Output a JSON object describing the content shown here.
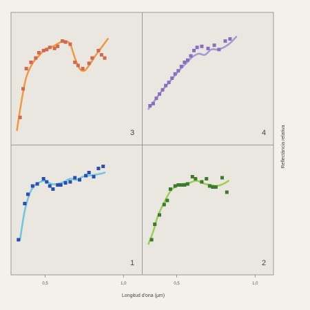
{
  "chart_data": {
    "type": "scatter",
    "title": "",
    "xlabel": "Longitud d'ona (μm)",
    "ylabel": "Reflectància relativa",
    "xlim": [
      0.3,
      1.1
    ],
    "grid": "2x2 panels",
    "panels": [
      {
        "label": "3",
        "marker_color": "#d2694f",
        "line_color": "#f09a45",
        "points": [
          [
            0.34,
            0.14
          ],
          [
            0.36,
            0.41
          ],
          [
            0.38,
            0.6
          ],
          [
            0.41,
            0.66
          ],
          [
            0.44,
            0.7
          ],
          [
            0.46,
            0.75
          ],
          [
            0.49,
            0.77
          ],
          [
            0.51,
            0.78
          ],
          [
            0.53,
            0.8
          ],
          [
            0.56,
            0.79
          ],
          [
            0.58,
            0.81
          ],
          [
            0.61,
            0.86
          ],
          [
            0.63,
            0.85
          ],
          [
            0.66,
            0.83
          ],
          [
            0.69,
            0.66
          ],
          [
            0.71,
            0.63
          ],
          [
            0.74,
            0.6
          ],
          [
            0.78,
            0.65
          ],
          [
            0.8,
            0.7
          ],
          [
            0.84,
            0.77
          ],
          [
            0.86,
            0.73
          ],
          [
            0.88,
            0.7
          ]
        ],
        "curve": [
          [
            0.32,
            0.02
          ],
          [
            0.35,
            0.3
          ],
          [
            0.38,
            0.52
          ],
          [
            0.42,
            0.65
          ],
          [
            0.46,
            0.72
          ],
          [
            0.5,
            0.78
          ],
          [
            0.55,
            0.81
          ],
          [
            0.6,
            0.85
          ],
          [
            0.63,
            0.86
          ],
          [
            0.66,
            0.83
          ],
          [
            0.69,
            0.7
          ],
          [
            0.72,
            0.6
          ],
          [
            0.75,
            0.58
          ],
          [
            0.78,
            0.63
          ],
          [
            0.82,
            0.72
          ],
          [
            0.86,
            0.8
          ],
          [
            0.9,
            0.88
          ]
        ]
      },
      {
        "label": "4",
        "marker_color": "#8a6fbe",
        "line_color": "#a89ad6",
        "points": [
          [
            0.33,
            0.25
          ],
          [
            0.35,
            0.27
          ],
          [
            0.37,
            0.32
          ],
          [
            0.39,
            0.36
          ],
          [
            0.41,
            0.4
          ],
          [
            0.43,
            0.44
          ],
          [
            0.45,
            0.47
          ],
          [
            0.47,
            0.51
          ],
          [
            0.49,
            0.55
          ],
          [
            0.51,
            0.58
          ],
          [
            0.53,
            0.62
          ],
          [
            0.55,
            0.66
          ],
          [
            0.57,
            0.68
          ],
          [
            0.59,
            0.72
          ],
          [
            0.61,
            0.77
          ],
          [
            0.63,
            0.8
          ],
          [
            0.66,
            0.81
          ],
          [
            0.7,
            0.79
          ],
          [
            0.74,
            0.82
          ],
          [
            0.77,
            0.78
          ],
          [
            0.81,
            0.86
          ],
          [
            0.84,
            0.88
          ]
        ],
        "curve": [
          [
            0.32,
            0.22
          ],
          [
            0.36,
            0.3
          ],
          [
            0.4,
            0.38
          ],
          [
            0.44,
            0.45
          ],
          [
            0.48,
            0.52
          ],
          [
            0.52,
            0.59
          ],
          [
            0.56,
            0.65
          ],
          [
            0.6,
            0.71
          ],
          [
            0.64,
            0.74
          ],
          [
            0.68,
            0.73
          ],
          [
            0.72,
            0.78
          ],
          [
            0.76,
            0.78
          ],
          [
            0.8,
            0.8
          ],
          [
            0.84,
            0.84
          ],
          [
            0.88,
            0.9
          ]
        ]
      },
      {
        "label": "1",
        "marker_color": "#2a4fb0",
        "line_color": "#6fc6e3",
        "points": [
          [
            0.33,
            0.22
          ],
          [
            0.37,
            0.57
          ],
          [
            0.39,
            0.66
          ],
          [
            0.42,
            0.74
          ],
          [
            0.45,
            0.76
          ],
          [
            0.49,
            0.81
          ],
          [
            0.51,
            0.78
          ],
          [
            0.53,
            0.74
          ],
          [
            0.55,
            0.71
          ],
          [
            0.58,
            0.75
          ],
          [
            0.6,
            0.75
          ],
          [
            0.63,
            0.77
          ],
          [
            0.66,
            0.78
          ],
          [
            0.69,
            0.82
          ],
          [
            0.72,
            0.8
          ],
          [
            0.76,
            0.84
          ],
          [
            0.78,
            0.87
          ],
          [
            0.81,
            0.83
          ],
          [
            0.84,
            0.91
          ],
          [
            0.87,
            0.93
          ]
        ],
        "curve": [
          [
            0.34,
            0.22
          ],
          [
            0.37,
            0.5
          ],
          [
            0.4,
            0.66
          ],
          [
            0.43,
            0.74
          ],
          [
            0.47,
            0.78
          ],
          [
            0.5,
            0.79
          ],
          [
            0.54,
            0.76
          ],
          [
            0.58,
            0.76
          ],
          [
            0.62,
            0.78
          ],
          [
            0.66,
            0.81
          ],
          [
            0.7,
            0.8
          ],
          [
            0.74,
            0.83
          ],
          [
            0.78,
            0.84
          ],
          [
            0.82,
            0.85
          ],
          [
            0.86,
            0.86
          ],
          [
            0.88,
            0.87
          ]
        ]
      },
      {
        "label": "2",
        "marker_color": "#3d7a2e",
        "line_color": "#9ccf58",
        "points": [
          [
            0.34,
            0.22
          ],
          [
            0.36,
            0.37
          ],
          [
            0.39,
            0.46
          ],
          [
            0.42,
            0.56
          ],
          [
            0.44,
            0.6
          ],
          [
            0.46,
            0.71
          ],
          [
            0.49,
            0.74
          ],
          [
            0.51,
            0.75
          ],
          [
            0.53,
            0.75
          ],
          [
            0.55,
            0.75
          ],
          [
            0.57,
            0.76
          ],
          [
            0.6,
            0.83
          ],
          [
            0.62,
            0.81
          ],
          [
            0.66,
            0.78
          ],
          [
            0.69,
            0.81
          ],
          [
            0.71,
            0.74
          ],
          [
            0.73,
            0.73
          ],
          [
            0.75,
            0.73
          ],
          [
            0.79,
            0.82
          ],
          [
            0.82,
            0.68
          ]
        ],
        "curve": [
          [
            0.32,
            0.18
          ],
          [
            0.35,
            0.3
          ],
          [
            0.38,
            0.45
          ],
          [
            0.42,
            0.58
          ],
          [
            0.46,
            0.69
          ],
          [
            0.5,
            0.74
          ],
          [
            0.54,
            0.76
          ],
          [
            0.58,
            0.77
          ],
          [
            0.62,
            0.79
          ],
          [
            0.65,
            0.78
          ],
          [
            0.68,
            0.76
          ],
          [
            0.72,
            0.75
          ],
          [
            0.75,
            0.74
          ],
          [
            0.78,
            0.75
          ],
          [
            0.81,
            0.77
          ],
          [
            0.83,
            0.79
          ]
        ]
      }
    ],
    "x_ticks": [
      {
        "value": 0.5,
        "label": "0,5"
      },
      {
        "value": 1.0,
        "label": "1,0"
      }
    ]
  }
}
